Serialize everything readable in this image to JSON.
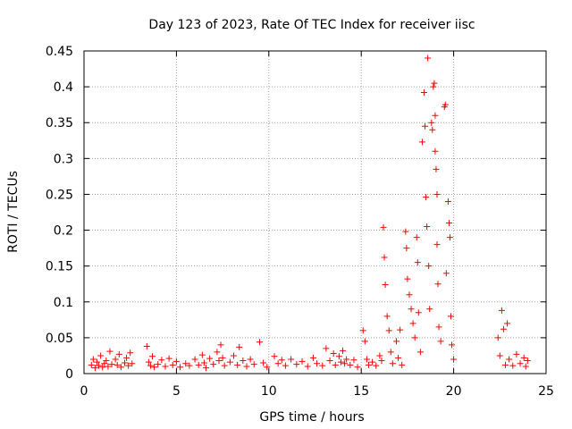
{
  "chart_data": {
    "type": "scatter",
    "title": "Day 123 of 2023, Rate Of TEC Index for receiver iisc",
    "xlabel": "GPS time / hours",
    "ylabel": "ROTI / TECUs",
    "xlim": [
      0,
      25
    ],
    "ylim": [
      0,
      0.45
    ],
    "xticks": [
      0,
      5,
      10,
      15,
      20,
      25
    ],
    "yticks": [
      0,
      0.05,
      0.1,
      0.15,
      0.2,
      0.25,
      0.3,
      0.35,
      0.4,
      0.45
    ],
    "xtick_labels": [
      "0",
      "5",
      "10",
      "15",
      "20",
      "25"
    ],
    "ytick_labels": [
      "0",
      "0.05",
      "0.1",
      "0.15",
      "0.2",
      "0.25",
      "0.3",
      "0.35",
      "0.4",
      "0.45"
    ],
    "grid": true,
    "marker": "+",
    "series": [
      {
        "color": "#ff0000",
        "points": [
          [
            0.4,
            0.012
          ],
          [
            0.5,
            0.02
          ],
          [
            0.6,
            0.008
          ],
          [
            0.7,
            0.016
          ],
          [
            0.8,
            0.011
          ],
          [
            0.9,
            0.025
          ],
          [
            1.0,
            0.009
          ],
          [
            1.1,
            0.014
          ],
          [
            1.2,
            0.018
          ],
          [
            1.3,
            0.01
          ],
          [
            1.4,
            0.031
          ],
          [
            1.5,
            0.013
          ],
          [
            1.7,
            0.02
          ],
          [
            1.8,
            0.012
          ],
          [
            1.9,
            0.027
          ],
          [
            2.0,
            0.009
          ],
          [
            2.2,
            0.015
          ],
          [
            2.3,
            0.022
          ],
          [
            2.4,
            0.011
          ],
          [
            2.5,
            0.029
          ],
          [
            2.6,
            0.014
          ],
          [
            3.4,
            0.038
          ],
          [
            3.5,
            0.016
          ],
          [
            3.6,
            0.011
          ],
          [
            3.7,
            0.024
          ],
          [
            3.8,
            0.009
          ],
          [
            4.0,
            0.013
          ],
          [
            4.2,
            0.019
          ],
          [
            4.4,
            0.01
          ],
          [
            4.6,
            0.021
          ],
          [
            4.8,
            0.012
          ],
          [
            5.0,
            0.017
          ],
          [
            5.2,
            0.009
          ],
          [
            5.5,
            0.014
          ],
          [
            5.7,
            0.011
          ],
          [
            6.0,
            0.02
          ],
          [
            6.2,
            0.012
          ],
          [
            6.4,
            0.026
          ],
          [
            6.5,
            0.015
          ],
          [
            6.6,
            0.008
          ],
          [
            6.8,
            0.021
          ],
          [
            7.0,
            0.013
          ],
          [
            7.2,
            0.03
          ],
          [
            7.3,
            0.018
          ],
          [
            7.4,
            0.04
          ],
          [
            7.5,
            0.022
          ],
          [
            7.6,
            0.011
          ],
          [
            7.9,
            0.016
          ],
          [
            8.1,
            0.025
          ],
          [
            8.3,
            0.012
          ],
          [
            8.4,
            0.037
          ],
          [
            8.6,
            0.018
          ],
          [
            8.8,
            0.01
          ],
          [
            9.0,
            0.02
          ],
          [
            9.2,
            0.013
          ],
          [
            9.5,
            0.044
          ],
          [
            9.7,
            0.015
          ],
          [
            9.9,
            0.009
          ],
          [
            10.3,
            0.024
          ],
          [
            10.5,
            0.014
          ],
          [
            10.7,
            0.019
          ],
          [
            10.9,
            0.011
          ],
          [
            11.2,
            0.02
          ],
          [
            11.5,
            0.013
          ],
          [
            11.8,
            0.017
          ],
          [
            12.1,
            0.01
          ],
          [
            12.4,
            0.022
          ],
          [
            12.6,
            0.014
          ],
          [
            12.9,
            0.011
          ],
          [
            13.1,
            0.035
          ],
          [
            13.3,
            0.018
          ],
          [
            13.5,
            0.028
          ],
          [
            13.6,
            0.012
          ],
          [
            13.8,
            0.024
          ],
          [
            13.9,
            0.016
          ],
          [
            14.0,
            0.032
          ],
          [
            14.1,
            0.014
          ],
          [
            14.2,
            0.02
          ],
          [
            14.4,
            0.012
          ],
          [
            14.6,
            0.019
          ],
          [
            14.8,
            0.009
          ],
          [
            15.1,
            0.06
          ],
          [
            15.2,
            0.045
          ],
          [
            15.3,
            0.02
          ],
          [
            15.4,
            0.012
          ],
          [
            15.6,
            0.016
          ],
          [
            15.8,
            0.011
          ],
          [
            16.0,
            0.025
          ],
          [
            16.1,
            0.018
          ],
          [
            16.2,
            0.204
          ],
          [
            16.25,
            0.162
          ],
          [
            16.3,
            0.124
          ],
          [
            16.4,
            0.08
          ],
          [
            16.5,
            0.06
          ],
          [
            16.6,
            0.03
          ],
          [
            16.7,
            0.014
          ],
          [
            16.9,
            0.045
          ],
          [
            17.0,
            0.022
          ],
          [
            17.1,
            0.061
          ],
          [
            17.2,
            0.012
          ],
          [
            17.4,
            0.198
          ],
          [
            17.45,
            0.175
          ],
          [
            17.5,
            0.132
          ],
          [
            17.6,
            0.11
          ],
          [
            17.7,
            0.09
          ],
          [
            17.8,
            0.07
          ],
          [
            17.9,
            0.05
          ],
          [
            18.0,
            0.19
          ],
          [
            18.05,
            0.155
          ],
          [
            18.1,
            0.085
          ],
          [
            18.2,
            0.03
          ],
          [
            18.3,
            0.323
          ],
          [
            18.4,
            0.392
          ],
          [
            18.45,
            0.345
          ],
          [
            18.5,
            0.246
          ],
          [
            18.55,
            0.205
          ],
          [
            18.6,
            0.44
          ],
          [
            18.65,
            0.15
          ],
          [
            18.7,
            0.09
          ],
          [
            18.8,
            0.35
          ],
          [
            18.85,
            0.34
          ],
          [
            18.9,
            0.4
          ],
          [
            18.95,
            0.405
          ],
          [
            19.0,
            0.36
          ],
          [
            19.0,
            0.31
          ],
          [
            19.05,
            0.285
          ],
          [
            19.1,
            0.25
          ],
          [
            19.1,
            0.18
          ],
          [
            19.15,
            0.125
          ],
          [
            19.2,
            0.065
          ],
          [
            19.3,
            0.045
          ],
          [
            19.5,
            0.372
          ],
          [
            19.55,
            0.375
          ],
          [
            19.6,
            0.14
          ],
          [
            19.7,
            0.24
          ],
          [
            19.75,
            0.21
          ],
          [
            19.8,
            0.19
          ],
          [
            19.85,
            0.08
          ],
          [
            19.9,
            0.04
          ],
          [
            20.0,
            0.02
          ],
          [
            22.4,
            0.05
          ],
          [
            22.5,
            0.025
          ],
          [
            22.6,
            0.088
          ],
          [
            22.7,
            0.062
          ],
          [
            22.8,
            0.012
          ],
          [
            22.9,
            0.07
          ],
          [
            23.0,
            0.02
          ],
          [
            23.2,
            0.011
          ],
          [
            23.4,
            0.027
          ],
          [
            23.6,
            0.014
          ],
          [
            23.8,
            0.022
          ],
          [
            23.9,
            0.01
          ],
          [
            24.0,
            0.018
          ]
        ]
      }
    ]
  }
}
